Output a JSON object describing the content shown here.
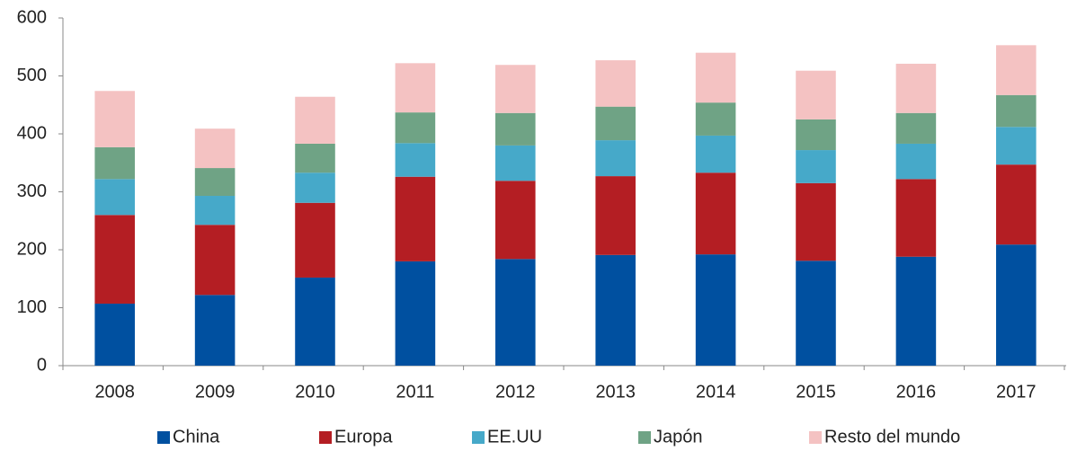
{
  "chart_data": {
    "type": "stacked_bar",
    "categories": [
      "2008",
      "2009",
      "2010",
      "2011",
      "2012",
      "2013",
      "2014",
      "2015",
      "2016",
      "2017"
    ],
    "series": [
      {
        "name": "China",
        "color": "#0050a0",
        "values": [
          107,
          122,
          152,
          180,
          184,
          191,
          192,
          181,
          188,
          209
        ]
      },
      {
        "name": "Europa",
        "color": "#b41e23",
        "values": [
          153,
          121,
          129,
          146,
          135,
          136,
          141,
          134,
          134,
          138
        ]
      },
      {
        "name": "EE.UU",
        "color": "#46a9c9",
        "values": [
          62,
          50,
          52,
          58,
          61,
          62,
          64,
          57,
          61,
          65
        ]
      },
      {
        "name": "Japón",
        "color": "#6fa385",
        "values": [
          55,
          48,
          50,
          53,
          56,
          58,
          57,
          53,
          53,
          55
        ]
      },
      {
        "name": "Resto del mundo",
        "color": "#f4c2c2",
        "values": [
          97,
          68,
          81,
          85,
          83,
          80,
          86,
          84,
          85,
          86
        ]
      }
    ],
    "ylim": [
      0,
      600
    ],
    "yticks": [
      0,
      100,
      200,
      300,
      400,
      500,
      600
    ],
    "grid": false,
    "legend": "bottom"
  }
}
